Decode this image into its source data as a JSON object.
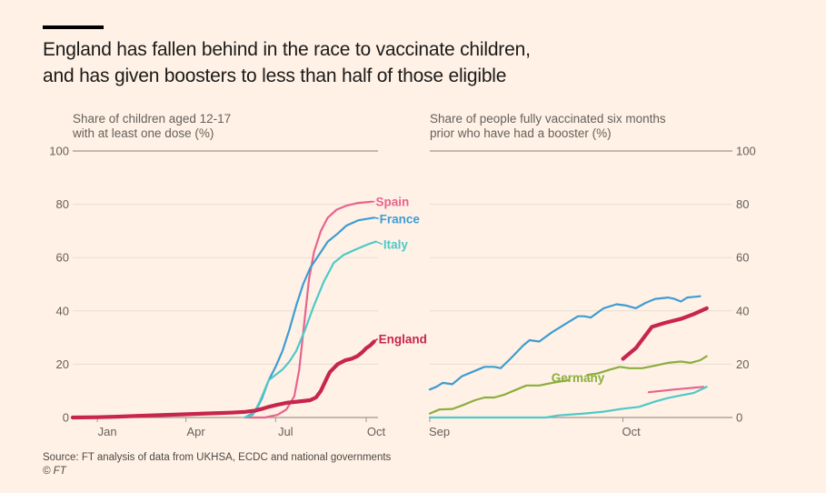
{
  "header": {
    "title_line1": "England has fallen behind in the race to vaccinate children,",
    "title_line2": "and has given boosters to less than half of those eligible"
  },
  "footer": {
    "source": "Source: FT analysis of data from UKHSA, ECDC and national governments",
    "copyright": "© FT"
  },
  "chart_data": [
    {
      "type": "line",
      "title": "Share of children aged 12-17 with at least one dose (%)",
      "subtitle_lines": [
        "Share of children aged 12-17",
        "with at least one dose (%)"
      ],
      "xlabel": "",
      "ylabel": "",
      "x_unit": "day of 2021 (0 = 1 Jan)",
      "xlim": [
        -25,
        285
      ],
      "ylim": [
        0,
        100
      ],
      "yticks": [
        0,
        20,
        40,
        60,
        80,
        100
      ],
      "xticks": [
        {
          "label": "Jan",
          "x": 0
        },
        {
          "label": "Apr",
          "x": 90
        },
        {
          "label": "Jul",
          "x": 181
        },
        {
          "label": "Oct",
          "x": 273
        }
      ],
      "y_axis_side": "left",
      "grid": true,
      "legend": "direct-labels",
      "series": [
        {
          "name": "Spain",
          "color": "#e8638f",
          "label": "Spain",
          "points": [
            [
              150,
              0
            ],
            [
              170,
              0
            ],
            [
              183,
              1
            ],
            [
              192,
              3
            ],
            [
              200,
              8
            ],
            [
              205,
              18
            ],
            [
              210,
              35
            ],
            [
              215,
              52
            ],
            [
              220,
              62
            ],
            [
              227,
              70
            ],
            [
              234,
              75
            ],
            [
              243,
              78
            ],
            [
              253,
              79.5
            ],
            [
              265,
              80.5
            ],
            [
              279,
              81
            ]
          ]
        },
        {
          "name": "France",
          "color": "#3d9dd3",
          "label": "France",
          "points": [
            [
              150,
              0
            ],
            [
              160,
              2
            ],
            [
              167,
              7
            ],
            [
              174,
              14
            ],
            [
              181,
              19
            ],
            [
              188,
              25
            ],
            [
              195,
              33
            ],
            [
              202,
              42
            ],
            [
              209,
              50
            ],
            [
              216,
              56
            ],
            [
              225,
              61
            ],
            [
              234,
              66
            ],
            [
              244,
              69
            ],
            [
              253,
              72
            ],
            [
              265,
              74
            ],
            [
              281,
              75
            ]
          ]
        },
        {
          "name": "Italy",
          "color": "#4ec9c8",
          "label": "Italy",
          "points": [
            [
              150,
              0
            ],
            [
              158,
              1
            ],
            [
              165,
              6
            ],
            [
              174,
              14
            ],
            [
              181,
              16
            ],
            [
              188,
              18
            ],
            [
              195,
              21
            ],
            [
              202,
              25
            ],
            [
              211,
              33
            ],
            [
              220,
              42
            ],
            [
              230,
              51
            ],
            [
              240,
              58
            ],
            [
              250,
              61
            ],
            [
              262,
              63
            ],
            [
              275,
              65
            ],
            [
              283,
              66
            ]
          ]
        },
        {
          "name": "England",
          "color": "#c7254e",
          "label": "England",
          "points": [
            [
              -25,
              0
            ],
            [
              0,
              0.1
            ],
            [
              20,
              0.3
            ],
            [
              41,
              0.6
            ],
            [
              65,
              0.9
            ],
            [
              88,
              1.2
            ],
            [
              110,
              1.5
            ],
            [
              135,
              1.8
            ],
            [
              150,
              2.1
            ],
            [
              160,
              2.6
            ],
            [
              167,
              3.2
            ],
            [
              174,
              4
            ],
            [
              183,
              4.8
            ],
            [
              192,
              5.5
            ],
            [
              205,
              6
            ],
            [
              216,
              6.5
            ],
            [
              222,
              7.5
            ],
            [
              227,
              10
            ],
            [
              232,
              14
            ],
            [
              236,
              17
            ],
            [
              244,
              20
            ],
            [
              252,
              21.5
            ],
            [
              258,
              22
            ],
            [
              264,
              23
            ],
            [
              269,
              24.5
            ],
            [
              273,
              26
            ],
            [
              277,
              27
            ],
            [
              281,
              28.5
            ]
          ]
        }
      ]
    },
    {
      "type": "line",
      "title": "Share of people fully vaccinated six months prior who have had a booster (%)",
      "subtitle_lines": [
        "Share of people fully vaccinated six months",
        "prior who have had a booster (%)"
      ],
      "xlabel": "",
      "ylabel": "",
      "x_unit": "days since 1 Sep 2021",
      "xlim": [
        0,
        47
      ],
      "ylim": [
        0,
        100
      ],
      "yticks": [
        0,
        20,
        40,
        60,
        80,
        100
      ],
      "xticks": [
        {
          "label": "Sep",
          "x": 0
        },
        {
          "label": "Oct",
          "x": 30
        }
      ],
      "y_axis_side": "right",
      "grid": true,
      "legend": "direct-labels",
      "series": [
        {
          "name": "France",
          "color": "#3d9dd3",
          "label": "",
          "points": [
            [
              0,
              10.5
            ],
            [
              1,
              11.5
            ],
            [
              2,
              13
            ],
            [
              3.5,
              12.5
            ],
            [
              5,
              15.5
            ],
            [
              6.5,
              17
            ],
            [
              8.5,
              19
            ],
            [
              10,
              19
            ],
            [
              11,
              18.5
            ],
            [
              12.5,
              22
            ],
            [
              14.5,
              27
            ],
            [
              15.5,
              29
            ],
            [
              17,
              28.5
            ],
            [
              19,
              32
            ],
            [
              21,
              35
            ],
            [
              23,
              38
            ],
            [
              24,
              38
            ],
            [
              25,
              37.5
            ],
            [
              27,
              41
            ],
            [
              29,
              42.5
            ],
            [
              30.5,
              42
            ],
            [
              32,
              41
            ],
            [
              33.5,
              43
            ],
            [
              35,
              44.5
            ],
            [
              37,
              45
            ],
            [
              38,
              44.5
            ],
            [
              39,
              43.5
            ],
            [
              40,
              45
            ],
            [
              42,
              45.5
            ]
          ]
        },
        {
          "name": "England",
          "color": "#c7254e",
          "label": "",
          "points": [
            [
              30,
              22
            ],
            [
              32,
              26
            ],
            [
              34.5,
              34
            ],
            [
              36.5,
              35.5
            ],
            [
              39,
              37
            ],
            [
              41,
              38.8
            ],
            [
              43,
              41
            ]
          ]
        },
        {
          "name": "Germany",
          "color": "#8bae3e",
          "label": "Germany",
          "label_gap": [
            21.5,
            24.5
          ],
          "points": [
            [
              0,
              1.5
            ],
            [
              1.5,
              3
            ],
            [
              3.5,
              3.2
            ],
            [
              5,
              4.5
            ],
            [
              7,
              6.5
            ],
            [
              8.5,
              7.5
            ],
            [
              10,
              7.5
            ],
            [
              11.5,
              8.5
            ],
            [
              13.5,
              10.5
            ],
            [
              15,
              12
            ],
            [
              17,
              12
            ],
            [
              19,
              13
            ],
            [
              21.5,
              14
            ],
            [
              24.5,
              16
            ],
            [
              26,
              16.5
            ],
            [
              28,
              18
            ],
            [
              29.5,
              19
            ],
            [
              31,
              18.5
            ],
            [
              33,
              18.5
            ],
            [
              35,
              19.5
            ],
            [
              37,
              20.5
            ],
            [
              39,
              21
            ],
            [
              40.5,
              20.5
            ],
            [
              42,
              21.5
            ],
            [
              43,
              23
            ]
          ]
        },
        {
          "name": "Spain",
          "color": "#e8638f",
          "label": "",
          "points": [
            [
              34,
              9.5
            ],
            [
              38,
              10.5
            ],
            [
              42.5,
              11.5
            ]
          ]
        },
        {
          "name": "Italy",
          "color": "#4ec9c8",
          "label": "",
          "points": [
            [
              0,
              0
            ],
            [
              10,
              0
            ],
            [
              18,
              0
            ],
            [
              20,
              0.8
            ],
            [
              24,
              1.5
            ],
            [
              27,
              2.2
            ],
            [
              30,
              3.3
            ],
            [
              32.5,
              4
            ],
            [
              35,
              6
            ],
            [
              37,
              7.3
            ],
            [
              39,
              8.3
            ],
            [
              41,
              9.2
            ],
            [
              43,
              11.5
            ]
          ]
        }
      ]
    }
  ]
}
